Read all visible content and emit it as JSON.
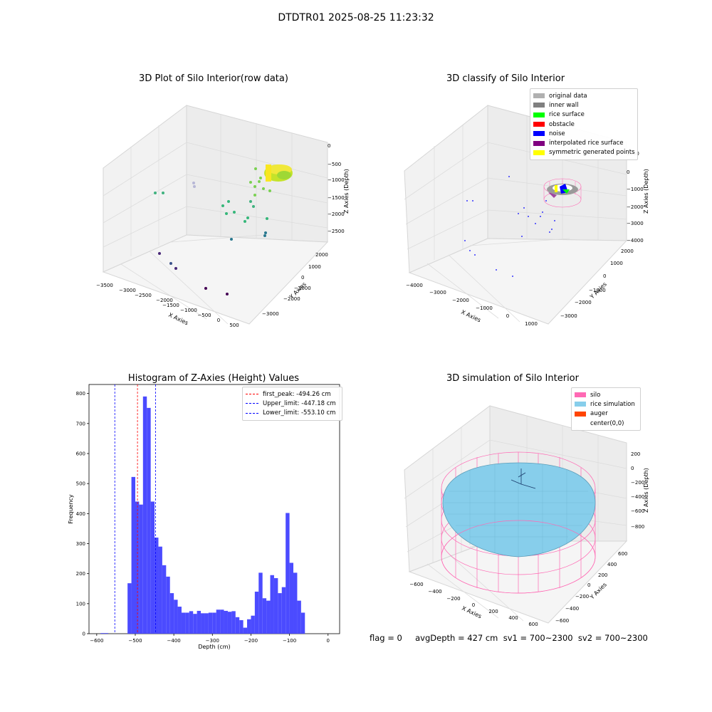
{
  "suptitle": "DTDTR01 2025-08-25 11:23:32",
  "footer": "flag = 0     avgDepth = 427 cm  sv1 = 700~2300  sv2 = 700~2300",
  "chart_data": [
    {
      "type": "scatter",
      "title": "3D Plot of Silo Interior(row data)",
      "xlabel": "X Axies",
      "ylabel": "Y Axies",
      "zlabel": "Z Axies (Depth)",
      "xticks": [
        -3500,
        -3000,
        -2500,
        -2000,
        -1500,
        -1000,
        -500,
        0,
        500
      ],
      "yticks": [
        -3000,
        -2000,
        -1000,
        0,
        1000,
        2000
      ],
      "zticks": [
        -2500,
        -2000,
        -1500,
        -1000,
        -500,
        0
      ],
      "colormap": "viridis",
      "note_points": "point cloud: dense cylindrical cluster near z≈-600..-1000, scattered points at deeper depths"
    },
    {
      "type": "scatter",
      "title": "3D classify of Silo Interior",
      "xlabel": "X Axies",
      "ylabel": "Y Axies",
      "zlabel": "Z Axies (Depth)",
      "xticks": [
        -4000,
        -3000,
        -2000,
        -1000,
        0,
        1000
      ],
      "yticks": [
        -3000,
        -2000,
        -1000,
        0,
        1000,
        2000
      ],
      "zticks": [
        -4000,
        -3000,
        -2000,
        -1000,
        0,
        1000
      ],
      "legend": [
        {
          "label": "original data",
          "color": "#b0b0b0"
        },
        {
          "label": "inner wall",
          "color": "#808080"
        },
        {
          "label": "rice surface",
          "color": "#00ff00"
        },
        {
          "label": "obstacle",
          "color": "#ff0000"
        },
        {
          "label": "noise",
          "color": "#0000ff"
        },
        {
          "label": "interpolated rice surface",
          "color": "#800080"
        },
        {
          "label": "symmetric generated points",
          "color": "#ffff00"
        }
      ]
    },
    {
      "type": "bar",
      "title": "Histogram of Z-Axies (Height) Values",
      "xlabel": "Depth (cm)",
      "ylabel": "Frequency",
      "xlim": [
        -620,
        30
      ],
      "ylim": [
        0,
        830
      ],
      "xticks": [
        -600,
        -500,
        -400,
        -300,
        -200,
        -100,
        0
      ],
      "yticks": [
        0,
        100,
        200,
        300,
        400,
        500,
        600,
        700,
        800
      ],
      "bar_color": "#4b4bff",
      "bin_width": 10,
      "bin_starts": [
        -590,
        -580,
        -570,
        -560,
        -550,
        -540,
        -530,
        -520,
        -510,
        -500,
        -490,
        -480,
        -470,
        -460,
        -450,
        -440,
        -430,
        -420,
        -410,
        -400,
        -390,
        -380,
        -370,
        -360,
        -350,
        -340,
        -330,
        -320,
        -310,
        -300,
        -290,
        -280,
        -270,
        -260,
        -250,
        -240,
        -230,
        -220,
        -210,
        -200,
        -190,
        -180,
        -170,
        -160,
        -150,
        -140,
        -130,
        -120,
        -110,
        -100,
        -90,
        -80,
        -70,
        -60,
        -50,
        -40,
        -30,
        -20,
        -10
      ],
      "counts": [
        2,
        2,
        0,
        0,
        0,
        0,
        0,
        168,
        522,
        440,
        430,
        790,
        752,
        440,
        320,
        290,
        228,
        190,
        135,
        113,
        90,
        70,
        70,
        75,
        66,
        76,
        68,
        68,
        70,
        70,
        80,
        80,
        76,
        73,
        75,
        55,
        45,
        20,
        48,
        60,
        140,
        203,
        118,
        110,
        195,
        185,
        135,
        155,
        402,
        236,
        203,
        110,
        70,
        0,
        0,
        0,
        0,
        0,
        0
      ],
      "vlines": [
        {
          "label": "first_peak: -494.26 cm",
          "value": -494.26,
          "color": "#ff0000"
        },
        {
          "label": "Upper_limit: -447.18 cm",
          "value": -447.18,
          "color": "#0000ff"
        },
        {
          "label": "Lower_limit: -553.10 cm",
          "value": -553.1,
          "color": "#0000ff"
        }
      ]
    },
    {
      "type": "surface",
      "title": "3D simulation of Silo Interior",
      "xlabel": "X Axies",
      "ylabel": "Y Axies",
      "zlabel": "Z Axies (Depth)",
      "xticks": [
        -600,
        -400,
        -200,
        0,
        200,
        400,
        600
      ],
      "yticks": [
        -600,
        -400,
        -200,
        0,
        200,
        400,
        600
      ],
      "zticks": [
        -800,
        -600,
        -400,
        -200,
        0,
        200
      ],
      "legend": [
        {
          "label": "silo",
          "color": "#ff69b4"
        },
        {
          "label": "rice simulation",
          "color": "#87ceeb"
        },
        {
          "label": "auger",
          "color": "#ff4500"
        },
        {
          "label": "center(0,0)",
          "color": ""
        }
      ]
    }
  ]
}
